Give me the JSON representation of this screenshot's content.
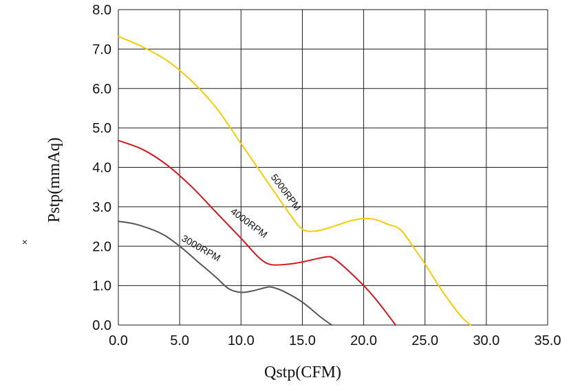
{
  "chart_data": {
    "type": "line",
    "xlabel": "Qstp(CFM)",
    "ylabel": "Pstp(mmAq)",
    "xlim": [
      0,
      35
    ],
    "ylim": [
      0,
      8
    ],
    "xticks": [
      "0.0",
      "5.0",
      "10.0",
      "15.0",
      "20.0",
      "25.0",
      "30.0",
      "35.0"
    ],
    "yticks": [
      "0.0",
      "1.0",
      "2.0",
      "3.0",
      "4.0",
      "5.0",
      "6.0",
      "7.0",
      "8.0"
    ],
    "grid": true,
    "side_marker": "×",
    "series": [
      {
        "name": "5000RPM",
        "color": "#f5cc00",
        "points": [
          [
            0,
            7.32
          ],
          [
            2,
            7.05
          ],
          [
            4,
            6.7
          ],
          [
            6,
            6.18
          ],
          [
            8,
            5.5
          ],
          [
            10,
            4.6
          ],
          [
            12,
            3.7
          ],
          [
            14,
            2.8
          ],
          [
            15,
            2.43
          ],
          [
            16,
            2.38
          ],
          [
            17,
            2.45
          ],
          [
            18,
            2.55
          ],
          [
            19,
            2.65
          ],
          [
            20,
            2.7
          ],
          [
            21,
            2.67
          ],
          [
            22,
            2.55
          ],
          [
            23,
            2.42
          ],
          [
            24,
            2.0
          ],
          [
            25,
            1.55
          ],
          [
            26,
            1.05
          ],
          [
            27,
            0.6
          ],
          [
            28,
            0.2
          ],
          [
            28.7,
            0
          ]
        ],
        "label_at": [
          12.4,
          3.75
        ],
        "label_angle": 53
      },
      {
        "name": "4000RPM",
        "color": "#d7141a",
        "points": [
          [
            0,
            4.68
          ],
          [
            2,
            4.45
          ],
          [
            4,
            4.05
          ],
          [
            6,
            3.5
          ],
          [
            8,
            2.85
          ],
          [
            10,
            2.2
          ],
          [
            11.5,
            1.7
          ],
          [
            12.5,
            1.53
          ],
          [
            14,
            1.55
          ],
          [
            15,
            1.6
          ],
          [
            16,
            1.67
          ],
          [
            17,
            1.73
          ],
          [
            17.5,
            1.7
          ],
          [
            18.5,
            1.45
          ],
          [
            20,
            1.0
          ],
          [
            21,
            0.65
          ],
          [
            22,
            0.25
          ],
          [
            22.6,
            0
          ]
        ],
        "label_at": [
          9.1,
          2.85
        ],
        "label_angle": 37
      },
      {
        "name": "3000RPM",
        "color": "#555555",
        "points": [
          [
            0,
            2.63
          ],
          [
            1.5,
            2.55
          ],
          [
            3.5,
            2.32
          ],
          [
            5,
            2.0
          ],
          [
            6.5,
            1.6
          ],
          [
            8,
            1.2
          ],
          [
            9,
            0.92
          ],
          [
            10,
            0.83
          ],
          [
            11,
            0.87
          ],
          [
            12,
            0.95
          ],
          [
            12.5,
            0.96
          ],
          [
            13.5,
            0.85
          ],
          [
            15,
            0.58
          ],
          [
            16.5,
            0.2
          ],
          [
            17.4,
            0
          ]
        ],
        "label_at": [
          5.1,
          2.15
        ],
        "label_angle": 30
      }
    ]
  }
}
